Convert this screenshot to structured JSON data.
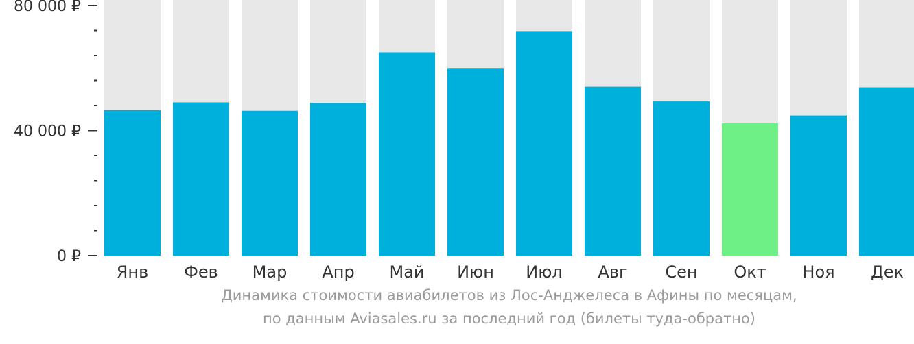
{
  "chart_data": {
    "type": "bar",
    "categories": [
      "Янв",
      "Фев",
      "Мар",
      "Апр",
      "Май",
      "Июн",
      "Июл",
      "Авг",
      "Сен",
      "Окт",
      "Ноя",
      "Дек"
    ],
    "values": [
      46500,
      49000,
      46300,
      48800,
      65000,
      60000,
      71800,
      54000,
      49300,
      42300,
      44800,
      53800
    ],
    "ylim": [
      0,
      80000
    ],
    "yticks": [
      0,
      40000,
      80000
    ],
    "ytick_labels": [
      "0 ₽",
      "40 000 ₽",
      "80 000 ₽"
    ],
    "minor_ticks_per_interval": 4,
    "highlight_index": 9,
    "colors": {
      "bar": "#00b0dc",
      "highlight": "#6ef086",
      "background_bar": "#e8e8e8",
      "axis": "#333333"
    },
    "title": "",
    "xlabel": "",
    "ylabel": ""
  },
  "caption": {
    "line1": "Динамика стоимости авиабилетов из Лос-Анджелеса в Афины по месяцам,",
    "line2": "по данным Aviasales.ru за последний год (билеты туда-обратно)"
  }
}
